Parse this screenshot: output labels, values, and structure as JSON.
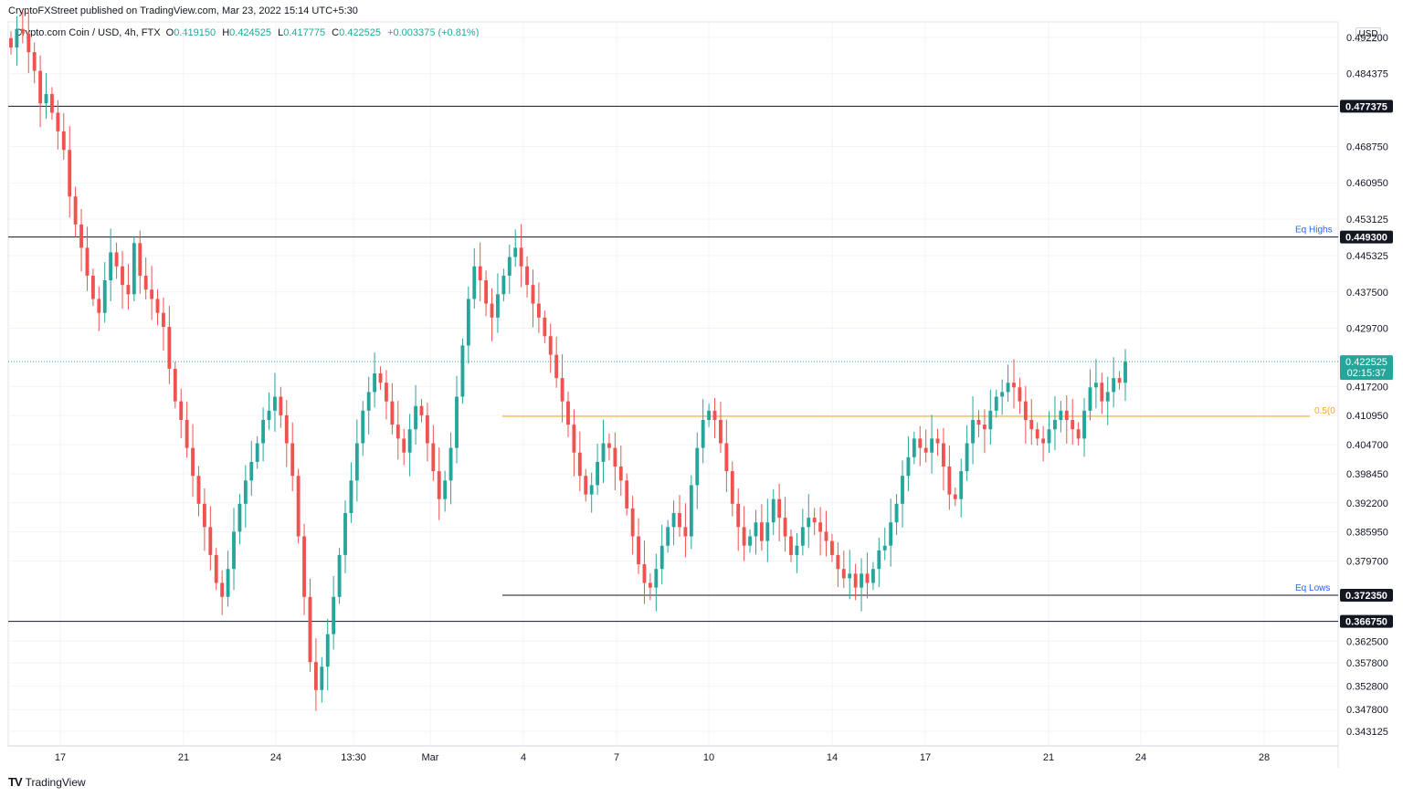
{
  "header": {
    "publisher": "CryptoFXStreet published on TradingView.com, Mar 23, 2022 15:14 UTC+5:30",
    "symbol": "Crypto.com Coin / USD, 4h, FTX",
    "ohlc": [
      {
        "key": "O",
        "value": "0.419150"
      },
      {
        "key": "H",
        "value": "0.424525"
      },
      {
        "key": "L",
        "value": "0.417775"
      },
      {
        "key": "C",
        "value": "0.422525"
      }
    ],
    "change": "+0.003375 (+0.81%)"
  },
  "branding": {
    "logo": "TV",
    "name": "TradingView"
  },
  "currency": "USD",
  "colors": {
    "up": "#26a69a",
    "down": "#ef5350",
    "level": "#131722",
    "fib": "#f5a623",
    "label_blue": "#2962ff"
  },
  "chart_data": {
    "type": "candlestick",
    "xlabels": [
      "17",
      "21",
      "24",
      "13:30",
      "Mar",
      "4",
      "7",
      "10",
      "14",
      "17",
      "21",
      "24",
      "28"
    ],
    "ylim": [
      0.34,
      0.4955
    ],
    "yticks": [
      "0.492200",
      "0.484375",
      "0.468750",
      "0.460950",
      "0.453125",
      "0.445325",
      "0.437500",
      "0.429700",
      "0.417200",
      "0.410950",
      "0.404700",
      "0.398450",
      "0.392200",
      "0.385950",
      "0.379700",
      "0.362500",
      "0.357800",
      "0.352800",
      "0.347800",
      "0.343125"
    ],
    "levels": [
      {
        "value": 0.477375,
        "label": "0.477375",
        "color": "#131722",
        "span": "full"
      },
      {
        "value": 0.4493,
        "label": "0.449300",
        "color": "#131722",
        "span": "full"
      },
      {
        "value": 0.37235,
        "label": "0.372350",
        "color": "#131722",
        "span": "partial"
      },
      {
        "value": 0.36675,
        "label": "0.366750",
        "color": "#131722",
        "span": "full"
      }
    ],
    "annotations": [
      {
        "text": "Eq Highs",
        "value": 0.4493,
        "color": "#2962ff"
      },
      {
        "text": "Eq Lows",
        "value": 0.37235,
        "color": "#2962ff"
      }
    ],
    "fib": {
      "value": 0.4108,
      "label": "0.5(0"
    },
    "current_price": {
      "value": 0.422525,
      "label": "0.422525",
      "timer": "02:15:37"
    },
    "candle_closes": [
      0.49,
      0.494,
      0.493,
      0.489,
      0.485,
      0.478,
      0.48,
      0.476,
      0.472,
      0.468,
      0.458,
      0.452,
      0.447,
      0.441,
      0.436,
      0.433,
      0.44,
      0.446,
      0.443,
      0.439,
      0.437,
      0.448,
      0.441,
      0.438,
      0.436,
      0.433,
      0.43,
      0.421,
      0.414,
      0.41,
      0.404,
      0.398,
      0.392,
      0.387,
      0.381,
      0.375,
      0.372,
      0.378,
      0.386,
      0.392,
      0.397,
      0.401,
      0.405,
      0.41,
      0.412,
      0.415,
      0.411,
      0.405,
      0.398,
      0.385,
      0.372,
      0.358,
      0.352,
      0.357,
      0.364,
      0.372,
      0.381,
      0.39,
      0.397,
      0.405,
      0.412,
      0.416,
      0.42,
      0.418,
      0.414,
      0.409,
      0.406,
      0.403,
      0.408,
      0.413,
      0.411,
      0.405,
      0.399,
      0.393,
      0.397,
      0.404,
      0.415,
      0.426,
      0.436,
      0.443,
      0.44,
      0.435,
      0.432,
      0.437,
      0.441,
      0.445,
      0.447,
      0.443,
      0.439,
      0.435,
      0.432,
      0.428,
      0.424,
      0.419,
      0.414,
      0.409,
      0.403,
      0.398,
      0.394,
      0.396,
      0.401,
      0.405,
      0.404,
      0.4,
      0.397,
      0.391,
      0.385,
      0.379,
      0.375,
      0.374,
      0.378,
      0.383,
      0.387,
      0.39,
      0.387,
      0.385,
      0.396,
      0.404,
      0.41,
      0.412,
      0.41,
      0.405,
      0.399,
      0.392,
      0.387,
      0.383,
      0.385,
      0.388,
      0.384,
      0.388,
      0.393,
      0.389,
      0.385,
      0.381,
      0.383,
      0.387,
      0.389,
      0.388,
      0.386,
      0.384,
      0.381,
      0.378,
      0.376,
      0.377,
      0.374,
      0.377,
      0.375,
      0.378,
      0.382,
      0.383,
      0.388,
      0.392,
      0.398,
      0.402,
      0.406,
      0.404,
      0.403,
      0.406,
      0.405,
      0.4,
      0.394,
      0.393,
      0.399,
      0.405,
      0.41,
      0.409,
      0.408,
      0.412,
      0.415,
      0.416,
      0.418,
      0.417,
      0.414,
      0.41,
      0.408,
      0.406,
      0.405,
      0.408,
      0.41,
      0.412,
      0.41,
      0.408,
      0.406,
      0.412,
      0.417,
      0.418,
      0.414,
      0.416,
      0.419,
      0.418,
      0.4225
    ]
  }
}
